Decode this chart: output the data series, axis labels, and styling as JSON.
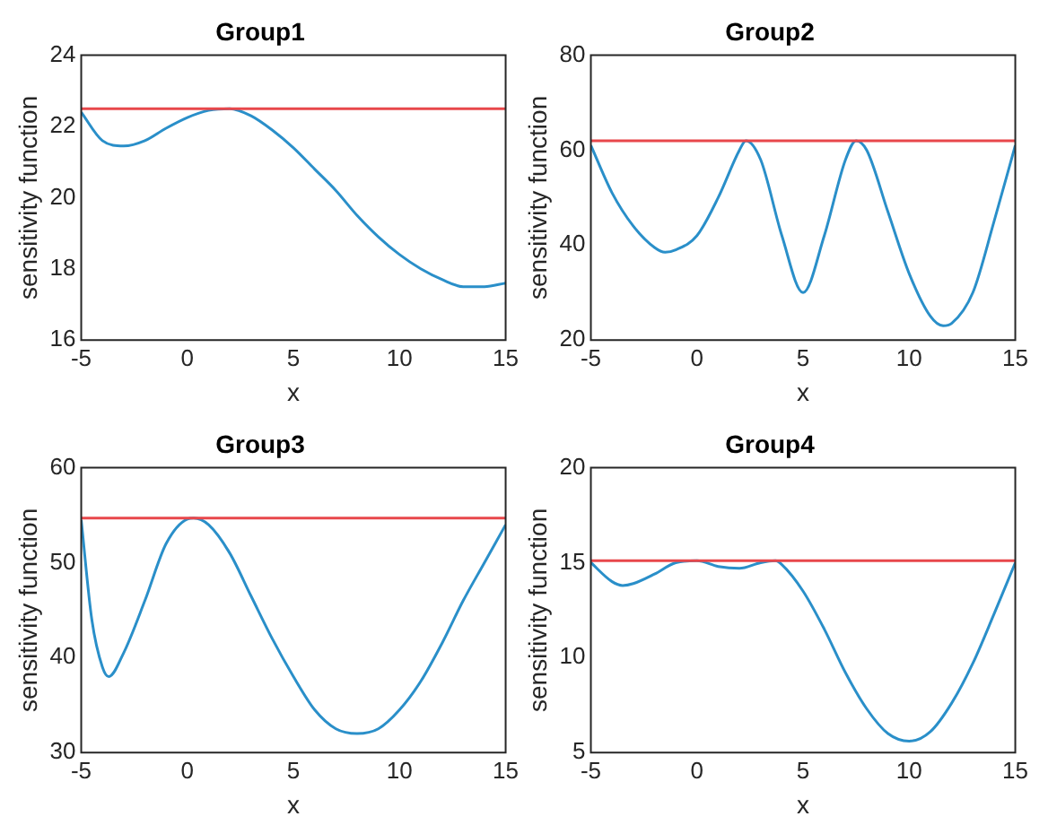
{
  "chart_data": [
    {
      "type": "line",
      "title": "Group1",
      "xlabel": "x",
      "ylabel": "sensitivity function",
      "xlim": [
        -5,
        15
      ],
      "xticks": [
        -5,
        0,
        5,
        10,
        15
      ],
      "ylim": [
        16,
        24
      ],
      "yticks": [
        16,
        18,
        20,
        22,
        24
      ],
      "grid": false,
      "legend": false,
      "marker": "none",
      "series": [
        {
          "color": "#2a8fc9",
          "x": [
            -5,
            -4,
            -3,
            -2,
            -1,
            0,
            1,
            2,
            3,
            4,
            5,
            6,
            7,
            8,
            9,
            10,
            11,
            12,
            13,
            14,
            15
          ],
          "values": [
            22.4,
            21.6,
            21.45,
            21.6,
            21.95,
            22.25,
            22.45,
            22.5,
            22.3,
            21.9,
            21.4,
            20.8,
            20.2,
            19.5,
            18.9,
            18.4,
            18.0,
            17.7,
            17.5,
            17.5,
            17.6
          ]
        }
      ],
      "ref_lines": [
        {
          "axis": "y",
          "value": 22.5,
          "color": "#e8474b"
        }
      ]
    },
    {
      "type": "line",
      "title": "Group2",
      "xlabel": "x",
      "ylabel": "sensitivity function",
      "xlim": [
        -5,
        15
      ],
      "xticks": [
        -5,
        0,
        5,
        10,
        15
      ],
      "ylim": [
        20,
        80
      ],
      "yticks": [
        20,
        40,
        60,
        80
      ],
      "grid": false,
      "legend": false,
      "marker": "none",
      "series": [
        {
          "color": "#2a8fc9",
          "x": [
            -5,
            -4,
            -3,
            -2,
            -1.5,
            -1,
            0,
            1,
            2,
            2.3,
            3,
            4,
            5,
            6,
            7,
            7.5,
            8,
            9,
            10,
            11,
            11.6,
            12,
            13,
            14,
            15
          ],
          "values": [
            61,
            51,
            44,
            39.5,
            38.5,
            39,
            42,
            50,
            60,
            62,
            58,
            42,
            30,
            42,
            58,
            62,
            60,
            47,
            34,
            25,
            23,
            23.5,
            30,
            45,
            61
          ]
        }
      ],
      "ref_lines": [
        {
          "axis": "y",
          "value": 62,
          "color": "#e8474b"
        }
      ]
    },
    {
      "type": "line",
      "title": "Group3",
      "xlabel": "x",
      "ylabel": "sensitivity function",
      "xlim": [
        -5,
        15
      ],
      "xticks": [
        -5,
        0,
        5,
        10,
        15
      ],
      "ylim": [
        30,
        60
      ],
      "yticks": [
        30,
        40,
        50,
        60
      ],
      "grid": false,
      "legend": false,
      "marker": "none",
      "series": [
        {
          "color": "#2a8fc9",
          "x": [
            -5,
            -4.5,
            -4,
            -3.7,
            -3,
            -2,
            -1,
            0,
            0.3,
            1,
            2,
            3,
            4,
            5,
            6,
            7,
            8,
            9,
            10,
            11,
            12,
            13,
            14,
            15
          ],
          "values": [
            54.5,
            44,
            39,
            38,
            40.5,
            46,
            52,
            54.6,
            54.7,
            54,
            51,
            46.5,
            42,
            38,
            34.5,
            32.5,
            32,
            32.5,
            34.5,
            37.5,
            41.5,
            46,
            50,
            54
          ]
        }
      ],
      "ref_lines": [
        {
          "axis": "y",
          "value": 54.7,
          "color": "#e8474b"
        }
      ]
    },
    {
      "type": "line",
      "title": "Group4",
      "xlabel": "x",
      "ylabel": "sensitivity function",
      "xlim": [
        -5,
        15
      ],
      "xticks": [
        -5,
        0,
        5,
        10,
        15
      ],
      "ylim": [
        5,
        20
      ],
      "yticks": [
        5,
        10,
        15,
        20
      ],
      "grid": false,
      "legend": false,
      "marker": "none",
      "series": [
        {
          "color": "#2a8fc9",
          "x": [
            -5,
            -4,
            -3.5,
            -3,
            -2,
            -1,
            0,
            1,
            2,
            3,
            3.7,
            4,
            5,
            6,
            7,
            8,
            9,
            10,
            11,
            12,
            13,
            14,
            15
          ],
          "values": [
            15,
            14,
            13.8,
            13.9,
            14.4,
            15,
            15.1,
            14.8,
            14.7,
            15,
            15.1,
            14.9,
            13.5,
            11.5,
            9.2,
            7.3,
            6,
            5.6,
            6.1,
            7.6,
            9.7,
            12.3,
            15
          ]
        }
      ],
      "ref_lines": [
        {
          "axis": "y",
          "value": 15.1,
          "color": "#e8474b"
        }
      ]
    }
  ]
}
